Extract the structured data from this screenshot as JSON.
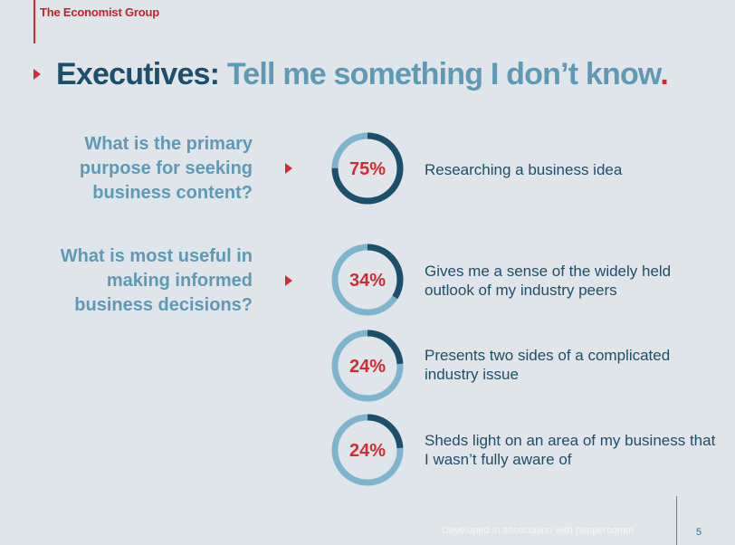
{
  "header": {
    "brand": "The Economist Group",
    "title_lead": "Executives:",
    "title_rest": " Tell me something I don’t know",
    "title_dot": "."
  },
  "questions": [
    "What is the primary purpose for seeking business content?",
    "What is most useful in making informed business decisions?"
  ],
  "colors": {
    "ring_dark": "#1d4f6a",
    "ring_light": "#7fb5cc",
    "accent_red": "#d22b34",
    "question_blue": "#5f9ab5"
  },
  "chart_data": {
    "type": "pie",
    "items": [
      {
        "value": 75,
        "label": "75%",
        "text": "Researching a business idea"
      },
      {
        "value": 34,
        "label": "34%",
        "text": "Gives me a sense of the widely held outlook of my industry peers"
      },
      {
        "value": 24,
        "label": "24%",
        "text": "Presents two sides of a complicated industry issue"
      },
      {
        "value": 24,
        "label": "24%",
        "text": "Sheds light on an area of my business that I wasn’t fully aware of"
      }
    ]
  },
  "footer": {
    "text": "Developed in association with peppercomm",
    "page": "5"
  }
}
